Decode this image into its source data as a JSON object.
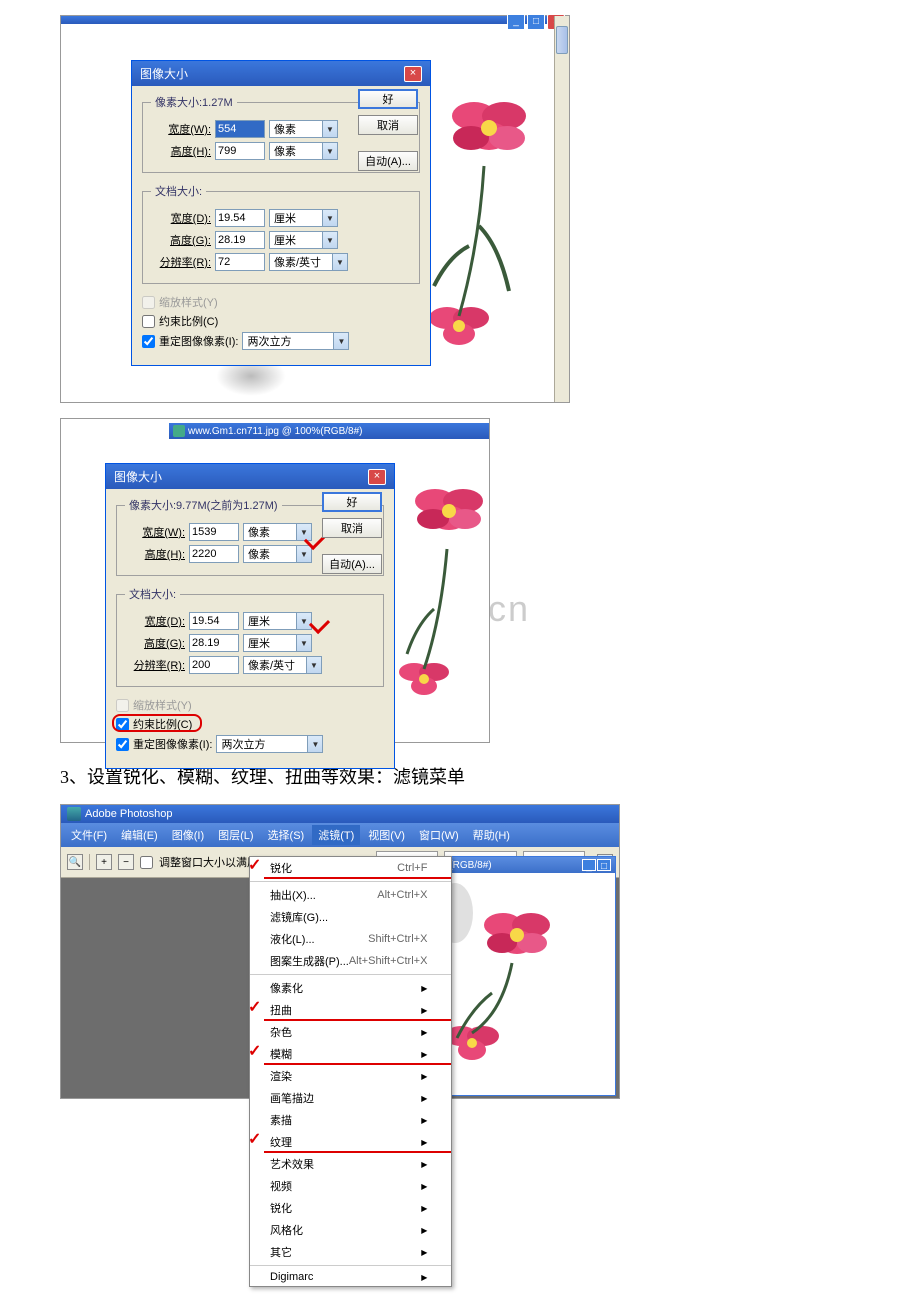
{
  "screenshot1": {
    "canvas_bg": "#ffffff",
    "dialog_title": "图像大小",
    "fieldset1_legend": "像素大小:1.27M",
    "width_label": "宽度(W):",
    "width_val": "554",
    "width_unit": "像素",
    "height_label": "高度(H):",
    "height_val": "799",
    "height_unit": "像素",
    "fieldset2_legend": "文档大小:",
    "doc_width_label": "宽度(D):",
    "doc_width_val": "19.54",
    "doc_width_unit": "厘米",
    "doc_height_label": "高度(G):",
    "doc_height_val": "28.19",
    "doc_height_unit": "厘米",
    "res_label": "分辨率(R):",
    "res_val": "72",
    "res_unit": "像素/英寸",
    "chk_scale": "缩放样式(Y)",
    "chk_constrain": "约束比例(C)",
    "chk_resample": "重定图像像素(I):",
    "resample_method": "两次立方",
    "btn_ok": "好",
    "btn_cancel": "取消",
    "btn_auto": "自动(A)...",
    "flower_colors": {
      "petal": "#e84878",
      "petal_dark": "#c02858",
      "stem": "#3a5a3a"
    }
  },
  "screenshot2": {
    "doc_title": "www.Gm1.cn711.jpg @ 100%(RGB/8#)",
    "dialog_title": "图像大小",
    "fieldset1_legend": "像素大小:9.77M(之前为1.27M)",
    "width_label": "宽度(W):",
    "width_val": "1539",
    "width_unit": "像素",
    "height_label": "高度(H):",
    "height_val": "2220",
    "height_unit": "像素",
    "fieldset2_legend": "文档大小:",
    "doc_width_label": "宽度(D):",
    "doc_width_val": "19.54",
    "doc_width_unit": "厘米",
    "doc_height_label": "高度(G):",
    "doc_height_val": "28.19",
    "doc_height_unit": "厘米",
    "res_label": "分辨率(R):",
    "res_val": "200",
    "res_unit": "像素/英寸",
    "chk_scale": "缩放样式(Y)",
    "chk_constrain": "约束比例(C)",
    "chk_resample": "重定图像像素(I):",
    "resample_method": "两次立方",
    "btn_ok": "好",
    "btn_cancel": "取消",
    "btn_auto": "自动(A)...",
    "watermark": "w.zixin.com.cn"
  },
  "heading3": "3、设置锐化、模糊、纹理、扭曲等效果：滤镜菜单",
  "screenshot3": {
    "app_title": "Adobe Photoshop",
    "menubar": [
      "文件(F)",
      "编辑(E)",
      "图像(I)",
      "图层(L)",
      "选择(S)",
      "滤镜(T)",
      "视图(V)",
      "窗口(W)",
      "帮助(H)"
    ],
    "menubar_active_index": 5,
    "toolbar_check": "调整窗口大小以满屏显示",
    "toolbar_btns": [
      "实际像素",
      "满画布显示",
      "打印尺寸"
    ],
    "doc_title": "66.7%(RGB/8#)",
    "menu_items": [
      {
        "label": "锐化",
        "shortcut": "Ctrl+F",
        "red": true
      },
      {
        "sep": true
      },
      {
        "label": "抽出(X)...",
        "shortcut": "Alt+Ctrl+X"
      },
      {
        "label": "滤镜库(G)..."
      },
      {
        "label": "液化(L)...",
        "shortcut": "Shift+Ctrl+X"
      },
      {
        "label": "图案生成器(P)...",
        "shortcut": "Alt+Shift+Ctrl+X"
      },
      {
        "sep": true
      },
      {
        "label": "像素化",
        "submenu": true
      },
      {
        "label": "扭曲",
        "submenu": true,
        "red": true
      },
      {
        "label": "杂色",
        "submenu": true
      },
      {
        "label": "模糊",
        "submenu": true,
        "red": true
      },
      {
        "label": "渲染",
        "submenu": true
      },
      {
        "label": "画笔描边",
        "submenu": true
      },
      {
        "label": "素描",
        "submenu": true
      },
      {
        "label": "纹理",
        "submenu": true,
        "red": true
      },
      {
        "label": "艺术效果",
        "submenu": true
      },
      {
        "label": "视频",
        "submenu": true
      },
      {
        "label": "锐化",
        "submenu": true
      },
      {
        "label": "风格化",
        "submenu": true
      },
      {
        "label": "其它",
        "submenu": true
      },
      {
        "sep": true
      },
      {
        "label": "Digimarc",
        "submenu": true
      }
    ],
    "colors": {
      "menubar_bg": "#4a7cd4",
      "workspace": "#6d6d6d"
    }
  }
}
